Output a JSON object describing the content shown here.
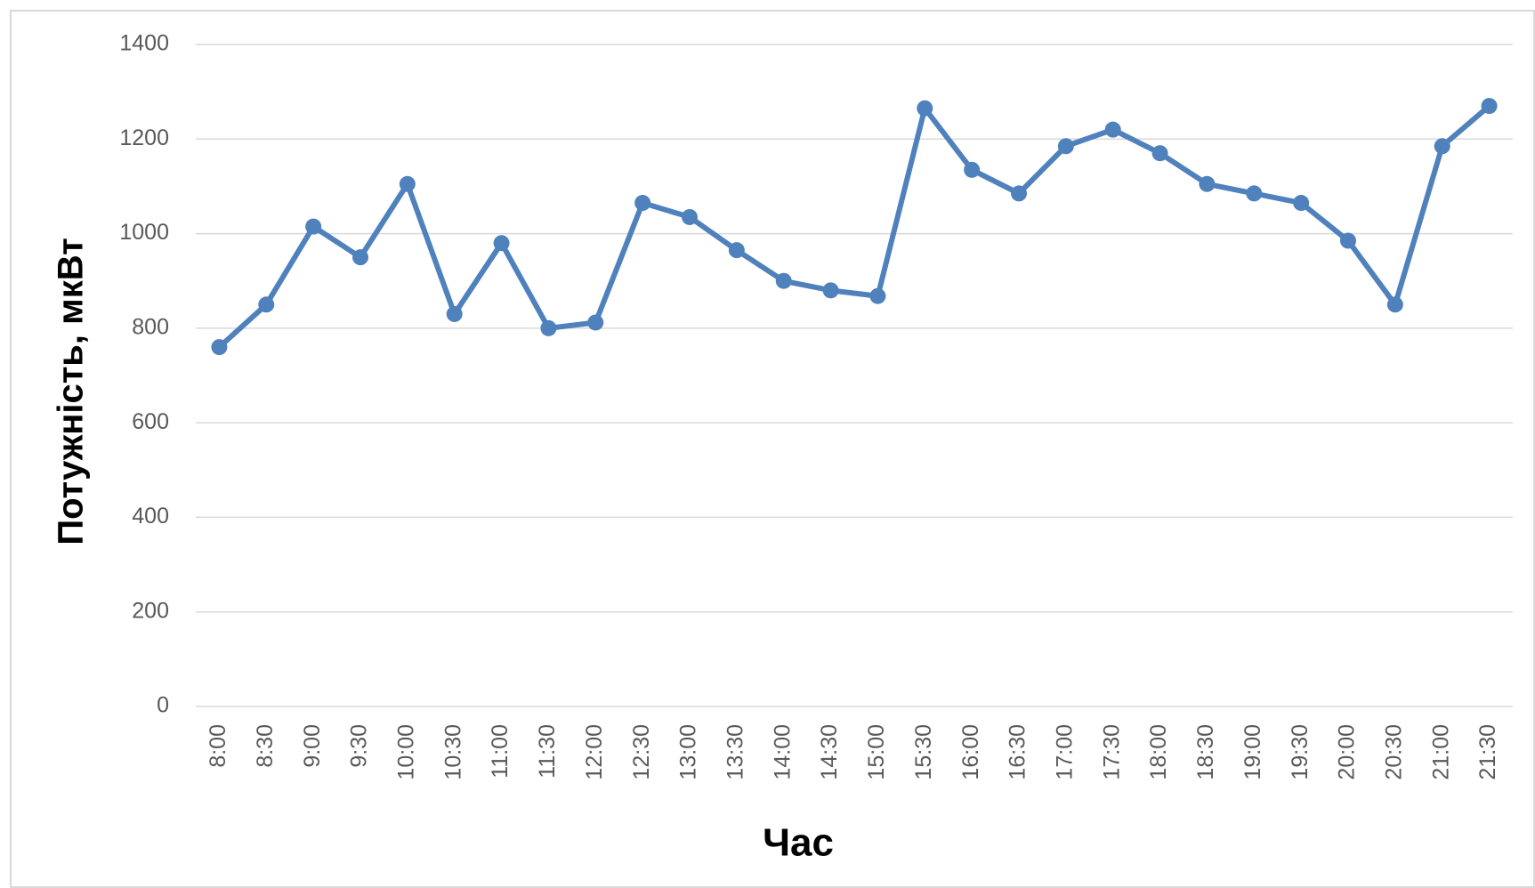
{
  "chart_data": {
    "type": "line",
    "x_label": "Час",
    "y_label": "Потужність, мкВт",
    "categories": [
      "8:00",
      "8:30",
      "9:00",
      "9:30",
      "10:00",
      "10:30",
      "11:00",
      "11:30",
      "12:00",
      "12:30",
      "13:00",
      "13:30",
      "14:00",
      "14:30",
      "15:00",
      "15:30",
      "16:00",
      "16:30",
      "17:00",
      "17:30",
      "18:00",
      "18:30",
      "19:00",
      "19:30",
      "20:00",
      "20:30",
      "21:00",
      "21:30"
    ],
    "series": [
      {
        "color": "#4f81bd",
        "values": [
          760,
          850,
          1015,
          950,
          1105,
          830,
          980,
          800,
          812,
          1065,
          1035,
          965,
          900,
          880,
          868,
          1265,
          1135,
          1085,
          1185,
          1220,
          1170,
          1105,
          1085,
          1065,
          985,
          850,
          1185,
          1270
        ]
      }
    ],
    "ylim": [
      0,
      1400
    ],
    "yticks": [
      0,
      200,
      400,
      600,
      800,
      1000,
      1200,
      1400
    ],
    "grid": true
  }
}
